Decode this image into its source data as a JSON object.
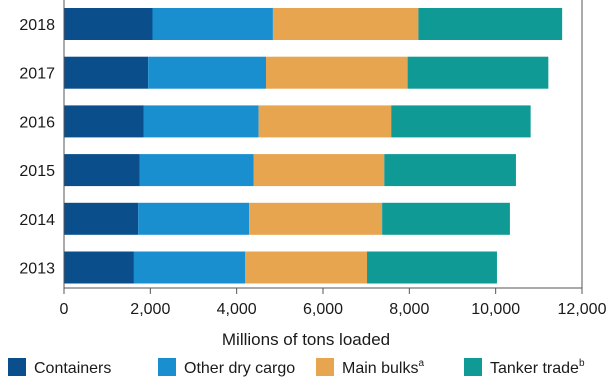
{
  "chart_data": {
    "type": "bar",
    "orientation": "horizontal",
    "stacked": true,
    "categories": [
      "2018",
      "2017",
      "2016",
      "2015",
      "2014",
      "2013"
    ],
    "series": [
      {
        "name": "Containers",
        "color": "#0a4f8c",
        "values": [
          2050,
          1950,
          1850,
          1750,
          1720,
          1620
        ]
      },
      {
        "name": "Other dry cargo",
        "color": "#1a8fd0",
        "values": [
          2790,
          2730,
          2660,
          2640,
          2570,
          2580
        ]
      },
      {
        "name": "Main bulks",
        "sup": "a",
        "color": "#e8a550",
        "values": [
          3370,
          3280,
          3070,
          3030,
          3080,
          2820
        ]
      },
      {
        "name": "Tanker trade",
        "sup": "b",
        "color": "#0f9a96",
        "values": [
          3330,
          3260,
          3230,
          3050,
          2960,
          3010
        ]
      }
    ],
    "xlabel": "Millions of tons loaded",
    "ylabel": "",
    "xlim": [
      0,
      12000
    ],
    "xticks": [
      0,
      2000,
      4000,
      6000,
      8000,
      10000,
      12000
    ],
    "xtick_labels": [
      "0",
      "2,000",
      "4,000",
      "6,000",
      "8,000",
      "10,000",
      "12,000"
    ],
    "grid": false,
    "legend_position": "bottom"
  }
}
